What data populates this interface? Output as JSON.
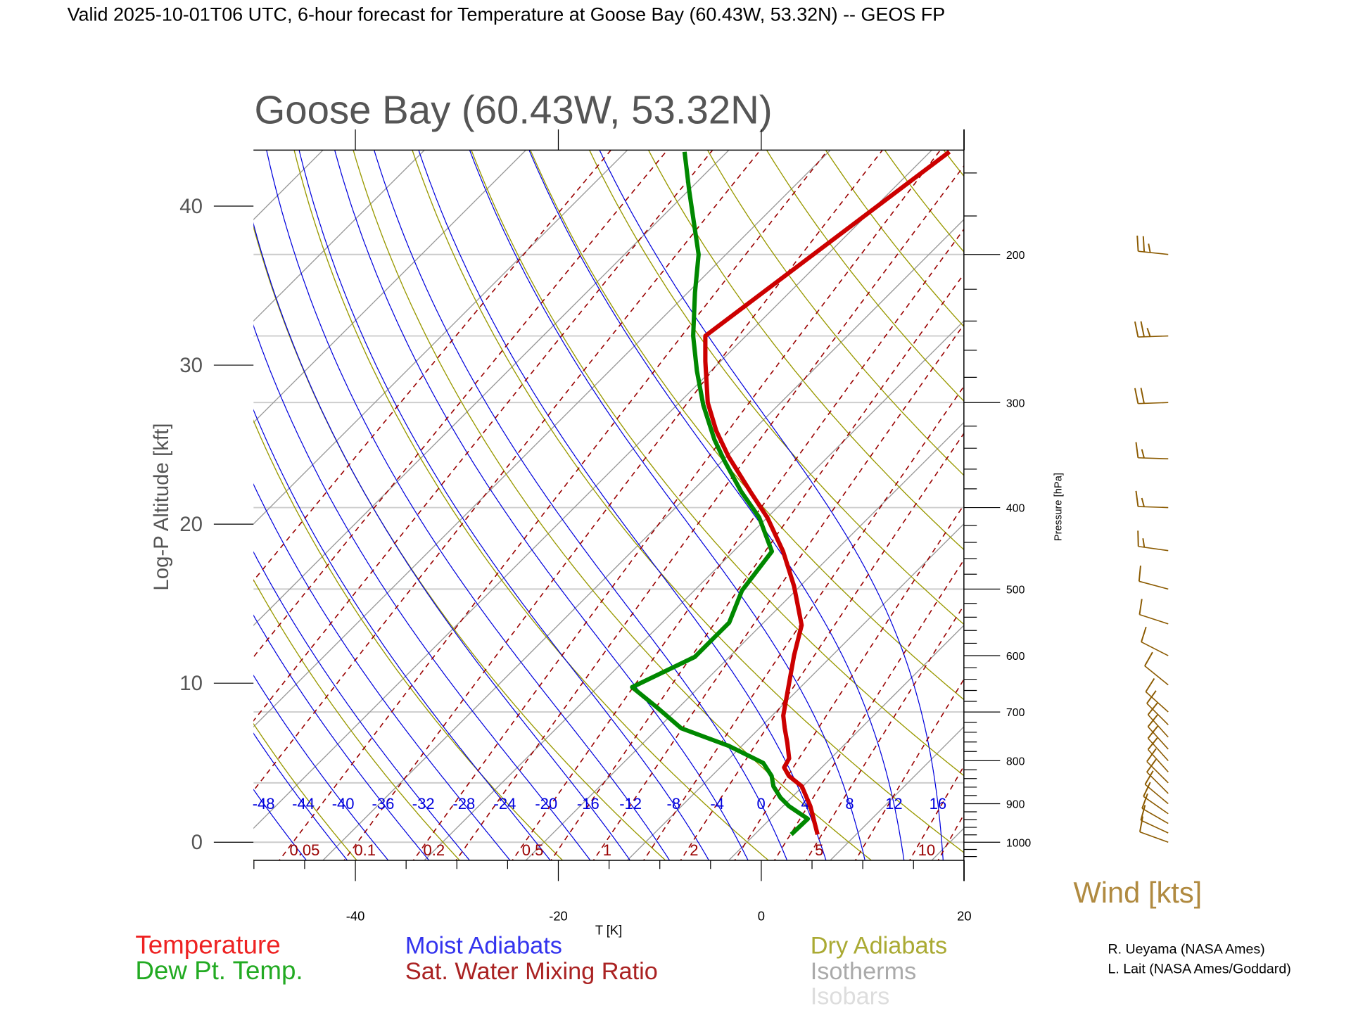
{
  "header": {
    "title": "Valid 2025-10-01T06 UTC, 6-hour forecast for Temperature at Goose Bay (60.43W, 53.32N) -- GEOS FP"
  },
  "chart_data": {
    "type": "line",
    "subtype": "skew-T log-P",
    "title": "Goose Bay (60.43W, 53.32N)",
    "xlabel": "T [K]",
    "ylabel_left": "Log-P Altitude [kft]",
    "ylabel_right": "Pressure [hPa]",
    "xlim": [
      -50,
      20
    ],
    "plim": [
      1048,
      151
    ],
    "x_ticks": [
      {
        "value": -40,
        "label": "-40"
      },
      {
        "value": -20,
        "label": "-20"
      },
      {
        "value": 0,
        "label": "0"
      },
      {
        "value": 20,
        "label": "20"
      }
    ],
    "left_ticks": [
      {
        "value": 0,
        "label": "0"
      },
      {
        "value": 10,
        "label": "10"
      },
      {
        "value": 20,
        "label": "20"
      },
      {
        "value": 30,
        "label": "30"
      },
      {
        "value": 40,
        "label": "40"
      }
    ],
    "right_ticks": [
      {
        "value": 1000,
        "label": "1000"
      },
      {
        "value": 900,
        "label": "900"
      },
      {
        "value": 800,
        "label": "800"
      },
      {
        "value": 700,
        "label": "700"
      },
      {
        "value": 600,
        "label": "600"
      },
      {
        "value": 500,
        "label": "500"
      },
      {
        "value": 400,
        "label": "400"
      },
      {
        "value": 300,
        "label": "300"
      },
      {
        "value": 200,
        "label": "200"
      }
    ],
    "isobars_hpa": [
      1000,
      850,
      700,
      500,
      400,
      300,
      250,
      200
    ],
    "series": [
      {
        "name": "Temperature",
        "color": "#cc0000",
        "points_p_T": [
          [
            979,
            3.0
          ],
          [
            906,
            -0.5
          ],
          [
            858,
            -3.3
          ],
          [
            834,
            -5.6
          ],
          [
            815,
            -6.9
          ],
          [
            795,
            -7.3
          ],
          [
            762,
            -9.0
          ],
          [
            732,
            -10.7
          ],
          [
            707,
            -12.1
          ],
          [
            643,
            -14.9
          ],
          [
            599,
            -17.0
          ],
          [
            552,
            -19.2
          ],
          [
            496,
            -23.8
          ],
          [
            451,
            -28.3
          ],
          [
            411,
            -33.2
          ],
          [
            383,
            -37.4
          ],
          [
            348,
            -43.0
          ],
          [
            324,
            -46.8
          ],
          [
            300,
            -50.4
          ],
          [
            268,
            -54.7
          ],
          [
            250,
            -57.2
          ],
          [
            151,
            -51.3
          ]
        ]
      },
      {
        "name": "Dew Pt. Temp.",
        "color": "#008800",
        "points_p_T": [
          [
            979,
            0.4
          ],
          [
            938,
            0.5
          ],
          [
            906,
            -2.6
          ],
          [
            885,
            -4.3
          ],
          [
            858,
            -6.1
          ],
          [
            834,
            -7.3
          ],
          [
            805,
            -9.4
          ],
          [
            768,
            -14.5
          ],
          [
            732,
            -20.9
          ],
          [
            690,
            -25.5
          ],
          [
            654,
            -29.8
          ],
          [
            602,
            -26.6
          ],
          [
            571,
            -26.6
          ],
          [
            548,
            -26.6
          ],
          [
            502,
            -28.5
          ],
          [
            451,
            -29.4
          ],
          [
            411,
            -34.0
          ],
          [
            383,
            -38.3
          ],
          [
            352,
            -43.0
          ],
          [
            332,
            -46.1
          ],
          [
            302,
            -50.6
          ],
          [
            275,
            -54.6
          ],
          [
            250,
            -58.4
          ],
          [
            222,
            -62.5
          ],
          [
            200,
            -65.9
          ],
          [
            168,
            -73.1
          ],
          [
            151,
            -77.4
          ]
        ]
      }
    ],
    "moist_adiabat_labels": [
      "-48",
      "-44",
      "-40",
      "-36",
      "-32",
      "-28",
      "-24",
      "-20",
      "-16",
      "-12",
      "-8",
      "-4",
      "0",
      "4",
      "8",
      "12",
      "16"
    ],
    "mixing_ratio_labels": [
      "0.05",
      "0.1",
      "0.2",
      "0.5",
      "1",
      "2",
      "5",
      "10"
    ],
    "wind": {
      "label": "Wind [kts]",
      "color": "#8b5a00",
      "barbs": [
        {
          "p": 200,
          "speed": 25,
          "dir": 276
        },
        {
          "p": 250,
          "speed": 25,
          "dir": 268
        },
        {
          "p": 300,
          "speed": 20,
          "dir": 268
        },
        {
          "p": 350,
          "speed": 15,
          "dir": 272
        },
        {
          "p": 400,
          "speed": 15,
          "dir": 272
        },
        {
          "p": 450,
          "speed": 15,
          "dir": 278
        },
        {
          "p": 500,
          "speed": 10,
          "dir": 285
        },
        {
          "p": 550,
          "speed": 10,
          "dir": 288
        },
        {
          "p": 600,
          "speed": 10,
          "dir": 297
        },
        {
          "p": 650,
          "speed": 10,
          "dir": 309
        },
        {
          "p": 700,
          "speed": 10,
          "dir": 312
        },
        {
          "p": 725,
          "speed": 10,
          "dir": 315
        },
        {
          "p": 750,
          "speed": 10,
          "dir": 318
        },
        {
          "p": 775,
          "speed": 10,
          "dir": 318
        },
        {
          "p": 800,
          "speed": 10,
          "dir": 318
        },
        {
          "p": 825,
          "speed": 10,
          "dir": 318
        },
        {
          "p": 850,
          "speed": 10,
          "dir": 315
        },
        {
          "p": 875,
          "speed": 10,
          "dir": 315
        },
        {
          "p": 900,
          "speed": 10,
          "dir": 310
        },
        {
          "p": 925,
          "speed": 10,
          "dir": 305
        },
        {
          "p": 950,
          "speed": 10,
          "dir": 300
        },
        {
          "p": 975,
          "speed": 10,
          "dir": 295
        },
        {
          "p": 1000,
          "speed": 10,
          "dir": 290
        }
      ]
    },
    "legend": {
      "temperature": "Temperature",
      "dewpoint": "Dew Pt. Temp.",
      "moist_adiabats": "Moist Adiabats",
      "mixing_ratio": "Sat. Water Mixing Ratio",
      "dry_adiabats": "Dry Adiabats",
      "isotherms": "Isotherms",
      "isobars": "Isobars"
    },
    "colors": {
      "moist": "#0000dd",
      "dry": "#999900",
      "mixing": "#990000",
      "isotherm": "#999999",
      "isobar": "#cccccc"
    }
  },
  "credits": [
    "R. Ueyama (NASA Ames)",
    "L. Lait (NASA Ames/Goddard)"
  ]
}
